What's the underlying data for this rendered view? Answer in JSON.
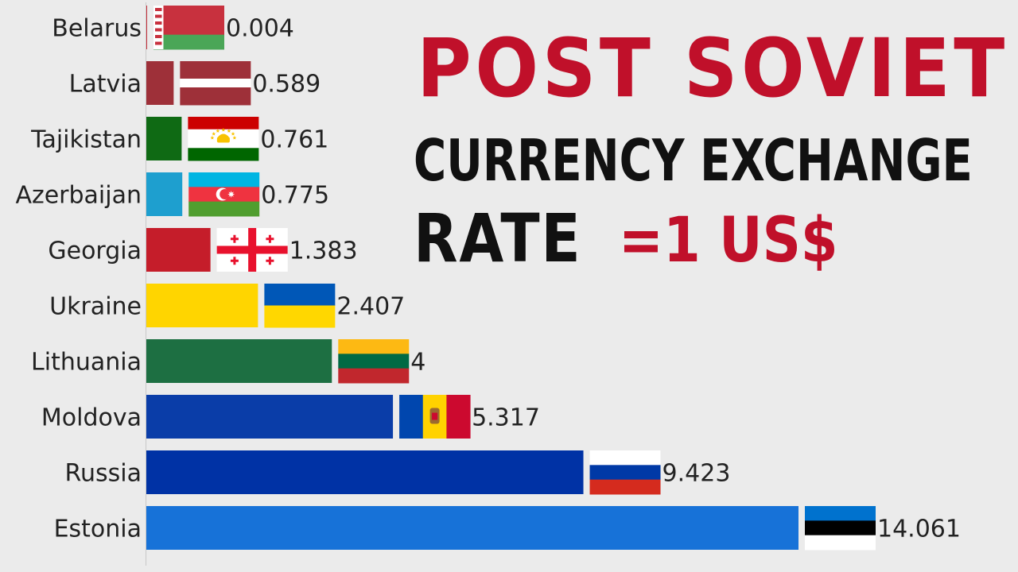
{
  "title": {
    "line1": "POST SOVIET",
    "line2": "CURRENCY EXCHANGE",
    "line3_rate": "RATE",
    "line3_usd": "=1 US$"
  },
  "colors": {
    "title_red": "#c0102a",
    "title_black": "#111111",
    "background": "#ebebeb"
  },
  "chart_data": {
    "type": "bar",
    "orientation": "horizontal",
    "categories": [
      "Belarus",
      "Latvia",
      "Tajikistan",
      "Azerbaijan",
      "Georgia",
      "Ukraine",
      "Lithuania",
      "Moldova",
      "Russia",
      "Estonia"
    ],
    "values": [
      0.004,
      0.589,
      0.761,
      0.775,
      1.383,
      2.407,
      4,
      5.317,
      9.423,
      14.061
    ],
    "value_labels": [
      "0.004",
      "0.589",
      "0.761",
      "0.775",
      "1.383",
      "2.407",
      "4",
      "5.317",
      "9.423",
      "14.061"
    ],
    "bar_colors": [
      "#c8313e",
      "#9e3039",
      "#0f6a14",
      "#1e9fcf",
      "#c51d2a",
      "#ffd500",
      "#1d6f42",
      "#0a3da8",
      "#0032a5",
      "#1772d8"
    ],
    "flags": [
      "belarus-flag",
      "latvia-flag",
      "tajikistan-flag",
      "azerbaijan-flag",
      "georgia-flag",
      "ukraine-flag",
      "lithuania-flag",
      "moldova-flag",
      "russia-flag",
      "estonia-flag"
    ],
    "xlim": [
      0,
      14.061
    ],
    "grid": false,
    "legend": "none"
  }
}
